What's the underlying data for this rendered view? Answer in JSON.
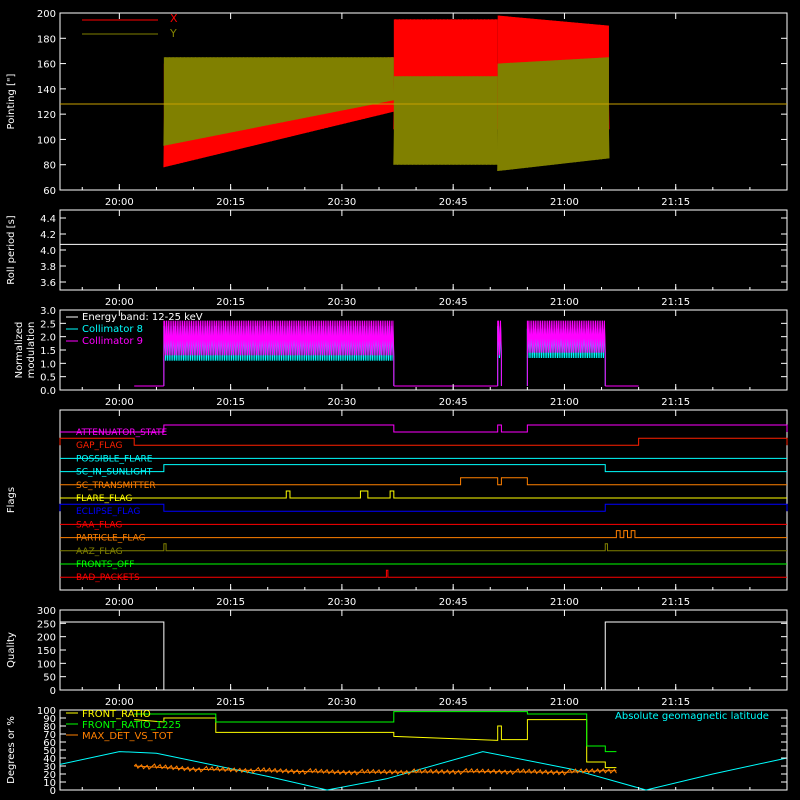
{
  "chart_data": [
    {
      "type": "line",
      "ylabel": "Pointing [\"]",
      "ylim": [
        60,
        200
      ],
      "yticks": [
        "60",
        "80",
        "100",
        "120",
        "140",
        "160",
        "180",
        "200"
      ],
      "xticks": [
        "20:00",
        "20:15",
        "20:30",
        "20:45",
        "21:00",
        "21:15"
      ],
      "legend": [
        "X",
        "Y"
      ],
      "colors": {
        "X": "#ff0000",
        "Y": "#808000",
        "ref": "#c8a000"
      },
      "ref_value": 128,
      "series": [
        {
          "name": "X",
          "segments": [
            {
              "t0": "20:06",
              "t1": "20:37",
              "low_from": 78,
              "low_to": 122,
              "high_from": 160,
              "high_to": 165
            },
            {
              "t0": "20:37",
              "t1": "20:51",
              "low_from": 108,
              "low_to": 108,
              "high_from": 195,
              "high_to": 195
            },
            {
              "t0": "20:51",
              "t1": "21:06",
              "low_from": 108,
              "low_to": 108,
              "high_from": 198,
              "high_to": 190
            }
          ]
        },
        {
          "name": "Y",
          "segments": [
            {
              "t0": "20:06",
              "t1": "20:37",
              "low_from": 95,
              "low_to": 131,
              "high_from": 165,
              "high_to": 165
            },
            {
              "t0": "20:37",
              "t1": "20:51",
              "low_from": 80,
              "low_to": 80,
              "high_from": 150,
              "high_to": 150
            },
            {
              "t0": "20:51",
              "t1": "21:06",
              "low_from": 75,
              "low_to": 85,
              "high_from": 160,
              "high_to": 165
            }
          ]
        }
      ]
    },
    {
      "type": "line",
      "ylabel": "Roll period [s]",
      "ylim": [
        3.5,
        4.5
      ],
      "yticks": [
        "3.6",
        "3.8",
        "4.0",
        "4.2",
        "4.4"
      ],
      "xticks": [
        "20:00",
        "20:15",
        "20:30",
        "20:45",
        "21:00",
        "21:15"
      ],
      "value": 4.07
    },
    {
      "type": "line",
      "ylabel": "Normalized modulation",
      "ylim": [
        0,
        3
      ],
      "yticks": [
        "0.0",
        "0.5",
        "1.0",
        "1.5",
        "2.0",
        "2.5",
        "3.0"
      ],
      "xticks": [
        "20:00",
        "20:15",
        "20:30",
        "20:45",
        "21:00",
        "21:15"
      ],
      "legend": [
        "Energy band: 12-25 keV",
        "Collimator 8",
        "Collimator 9"
      ],
      "colors": {
        "Energy band: 12-25 keV": "#ffffff",
        "Collimator 8": "#00ffff",
        "Collimator 9": "#ff00ff"
      },
      "series": [
        {
          "name": "Collimator 8",
          "segments": [
            {
              "t0": "20:06",
              "t1": "20:37",
              "low": 1.1,
              "high": 2.4
            },
            {
              "t0": "20:51",
              "t1": "20:51.5",
              "low": 1.2,
              "high": 2.4
            },
            {
              "t0": "20:55",
              "t1": "21:05.5",
              "low": 1.2,
              "high": 2.3
            }
          ]
        },
        {
          "name": "Collimator 9",
          "segments": [
            {
              "t0": "20:06",
              "t1": "20:37",
              "low": 1.3,
              "high": 2.6
            },
            {
              "t0": "20:51",
              "t1": "20:51.5",
              "low": 1.3,
              "high": 2.6
            },
            {
              "t0": "20:55",
              "t1": "21:05.5",
              "low": 1.4,
              "high": 2.6
            }
          ]
        }
      ],
      "baseline": [
        {
          "t0": "20:02",
          "t1": "20:06"
        },
        {
          "t0": "20:37",
          "t1": "20:51"
        },
        {
          "t0": "21:05.5",
          "t1": "21:10"
        }
      ],
      "baseline_value": 0.15
    },
    {
      "type": "line",
      "ylabel": "Flags",
      "xticks": [
        "20:00",
        "20:15",
        "20:30",
        "20:45",
        "21:00",
        "21:15"
      ],
      "flags": [
        {
          "label": "ATTENUATOR_STATE",
          "color": "#ff00ff",
          "steps": [
            [
              "20:06",
              "20:37"
            ],
            [
              "20:51",
              "20:51.5"
            ],
            [
              "20:55",
              "24:00"
            ]
          ]
        },
        {
          "label": "GAP_FLAG",
          "color": "#ff2000",
          "steps": [
            [
              "19:52",
              "20:02"
            ],
            [
              "21:10",
              "24:00"
            ]
          ]
        },
        {
          "label": "POSSIBLE_FLARE",
          "color": "#00ffff",
          "steps": []
        },
        {
          "label": "SC_IN_SUNLIGHT",
          "color": "#00ffff",
          "steps": [
            [
              "20:06",
              "21:05.5"
            ]
          ]
        },
        {
          "label": "SC_TRANSMITTER",
          "color": "#ff8000",
          "steps": [
            [
              "20:46",
              "20:51"
            ],
            [
              "20:51.5",
              "20:55"
            ]
          ]
        },
        {
          "label": "FLARE_FLAG",
          "color": "#ffff00",
          "steps": [
            [
              "20:22.5",
              "20:23"
            ],
            [
              "20:32.5",
              "20:33.5"
            ],
            [
              "20:36.5",
              "20:37"
            ]
          ]
        },
        {
          "label": "ECLIPSE_FLAG",
          "color": "#0000ff",
          "steps": [
            [
              "19:52",
              "20:06"
            ],
            [
              "21:05.5",
              "24:00"
            ]
          ]
        },
        {
          "label": "SAA_FLAG",
          "color": "#ff0000",
          "steps": []
        },
        {
          "label": "PARTICLE_FLAG",
          "color": "#ff8000",
          "steps": [
            [
              "21:07",
              "21:07.5"
            ],
            [
              "21:08",
              "21:08.5"
            ],
            [
              "21:09",
              "21:09.5"
            ]
          ]
        },
        {
          "label": "AAZ_FLAG",
          "color": "#808000",
          "steps": [
            [
              "20:06",
              "20:06.3"
            ],
            [
              "21:05.5",
              "21:05.8"
            ]
          ]
        },
        {
          "label": "FRONTS_OFF",
          "color": "#00ff00",
          "steps": []
        },
        {
          "label": "BAD_PACKETS",
          "color": "#ff0000",
          "steps": [
            [
              "20:36",
              "20:36.2"
            ]
          ]
        }
      ]
    },
    {
      "type": "line",
      "ylabel": "Quality",
      "ylim": [
        0,
        300
      ],
      "yticks": [
        "0",
        "50",
        "100",
        "150",
        "200",
        "250",
        "300"
      ],
      "xticks": [
        "20:00",
        "20:15",
        "20:30",
        "20:45",
        "21:00",
        "21:15"
      ],
      "steps": [
        [
          "19:52",
          255
        ],
        [
          "20:06",
          0
        ],
        [
          "21:05.5",
          255
        ],
        [
          "24:00",
          255
        ]
      ]
    },
    {
      "type": "line",
      "ylabel": "Degrees or %",
      "ylim": [
        0,
        100
      ],
      "yticks": [
        "0",
        "10",
        "20",
        "30",
        "40",
        "50",
        "60",
        "70",
        "80",
        "90",
        "100"
      ],
      "legend": [
        "FRONT_RATIO",
        "FRONT_RATIO_1225",
        "MAX_DET_VS_TOT"
      ],
      "annotation": "Absolute geomagnetic latitude",
      "colors": {
        "FRONT_RATIO": "#ffff00",
        "FRONT_RATIO_1225": "#00ff00",
        "MAX_DET_VS_TOT": "#ff8000",
        "latitude": "#00ffff"
      },
      "series": [
        {
          "name": "FRONT_RATIO",
          "points": [
            [
              "20:02",
              88
            ],
            [
              "20:06",
              85
            ],
            [
              "20:06",
              90
            ],
            [
              "20:13",
              90
            ],
            [
              "20:13",
              72
            ],
            [
              "20:37",
              72
            ],
            [
              "20:37",
              67
            ],
            [
              "20:51",
              62
            ],
            [
              "20:51",
              80
            ],
            [
              "20:51.5",
              80
            ],
            [
              "20:51.5",
              63
            ],
            [
              "20:55",
              63
            ],
            [
              "20:55",
              88
            ],
            [
              "21:03",
              88
            ],
            [
              "21:03",
              35
            ],
            [
              "21:05.5",
              35
            ],
            [
              "21:05.5",
              28
            ],
            [
              "21:07",
              28
            ]
          ]
        },
        {
          "name": "FRONT_RATIO_1225",
          "points": [
            [
              "20:02",
              95
            ],
            [
              "20:13",
              95
            ],
            [
              "20:13",
              85
            ],
            [
              "20:37",
              85
            ],
            [
              "20:37",
              98
            ],
            [
              "20:55",
              98
            ],
            [
              "20:55",
              95
            ],
            [
              "21:03",
              95
            ],
            [
              "21:03",
              55
            ],
            [
              "21:05.5",
              55
            ],
            [
              "21:05.5",
              48
            ],
            [
              "21:07",
              48
            ]
          ]
        },
        {
          "name": "MAX_DET_VS_TOT",
          "points": [
            [
              "20:02",
              30
            ],
            [
              "20:10",
              26
            ],
            [
              "20:30",
              22
            ],
            [
              "20:50",
              23
            ],
            [
              "21:00",
              22
            ],
            [
              "21:05",
              24
            ],
            [
              "21:07",
              24
            ]
          ]
        },
        {
          "name": "Absolute geomagnetic latitude",
          "points": [
            [
              "19:52",
              32
            ],
            [
              "20:00",
              48
            ],
            [
              "20:05",
              46
            ],
            [
              "20:20",
              17
            ],
            [
              "20:28",
              0
            ],
            [
              "20:36",
              14
            ],
            [
              "20:49",
              48
            ],
            [
              "21:01",
              26
            ],
            [
              "21:11",
              0
            ],
            [
              "21:20",
              20
            ],
            [
              "21:30",
              40
            ]
          ]
        }
      ]
    }
  ]
}
